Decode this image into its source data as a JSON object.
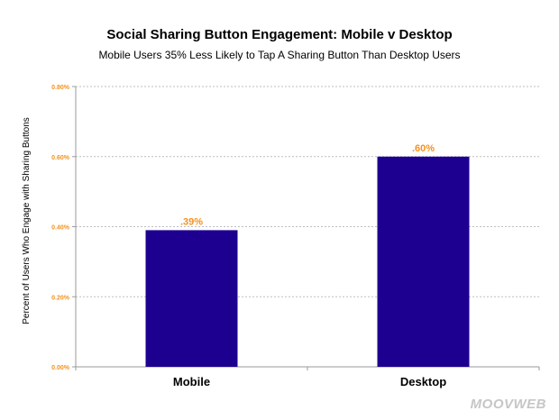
{
  "chart_data": {
    "type": "bar",
    "title": "Social Sharing Button Engagement: Mobile v Desktop",
    "subtitle": "Mobile Users 35% Less Likely to Tap A Sharing Button Than Desktop Users",
    "xlabel": "",
    "ylabel": "Percent of Users Who Engage with Sharing Buttons",
    "categories": [
      "Mobile",
      "Desktop"
    ],
    "values": [
      0.39,
      0.6
    ],
    "data_labels": [
      ".39%",
      ".60%"
    ],
    "ylim": [
      0,
      0.8
    ],
    "y_ticks": [
      0,
      0.2,
      0.4,
      0.6,
      0.8
    ],
    "y_tick_labels": [
      "0.00%",
      "0.20%",
      "0.40%",
      "0.60%",
      "0.80%"
    ],
    "grid": true,
    "legend": "none"
  },
  "colors": {
    "bar": "#1e0090",
    "data_label": "#f5911e",
    "tick_label": "#f5911e",
    "grid": "#bdbdbd",
    "axis": "#9a9a9a"
  },
  "watermark": "MOOVWEB"
}
